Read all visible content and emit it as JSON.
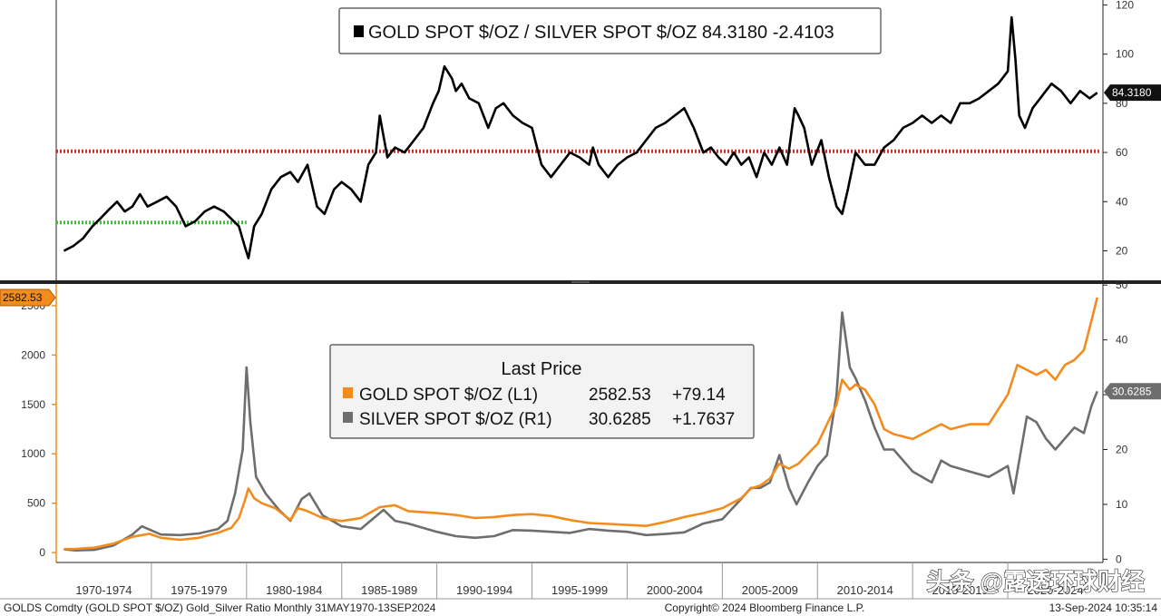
{
  "chart_data": [
    {
      "type": "line",
      "panel": "top",
      "legend": {
        "label": "GOLD SPOT $/OZ / SILVER SPOT $/OZ 84.3180  -2.4103",
        "placement": "top-center"
      },
      "last_value_label": "84.3180",
      "y_axis": {
        "side": "right",
        "ticks": [
          "20",
          "40",
          "60",
          "80",
          "100",
          "120"
        ],
        "range": [
          8,
          122
        ]
      },
      "reference_lines": [
        {
          "value": 60.5,
          "color": "#d42a2a",
          "style": "dotted",
          "from": "1970",
          "to": "2024.8"
        },
        {
          "value": 31.5,
          "color": "#3fbf3f",
          "style": "dotted",
          "from": "1970",
          "to": "1980"
        }
      ],
      "series": [
        {
          "color": "#000000",
          "x": [
            1970.4,
            1970.9,
            1971.4,
            1971.9,
            1972.3,
            1972.8,
            1973.2,
            1973.6,
            1974.0,
            1974.4,
            1974.8,
            1975.3,
            1975.8,
            1976.3,
            1976.8,
            1977.3,
            1977.8,
            1978.3,
            1978.8,
            1979.2,
            1979.6,
            1979.9,
            1980.1,
            1980.4,
            1980.8,
            1981.3,
            1981.8,
            1982.3,
            1982.7,
            1983.2,
            1983.7,
            1984.1,
            1984.6,
            1985.0,
            1985.5,
            1986.0,
            1986.4,
            1986.8,
            1987.0,
            1987.4,
            1987.8,
            1988.3,
            1988.8,
            1989.3,
            1989.8,
            1990.1,
            1990.4,
            1990.8,
            1991.0,
            1991.3,
            1991.7,
            1992.2,
            1992.7,
            1993.1,
            1993.5,
            1994.0,
            1994.5,
            1995.0,
            1995.5,
            1996.0,
            1996.5,
            1997.0,
            1997.5,
            1998.0,
            1998.2,
            1998.5,
            1999.0,
            1999.5,
            2000.0,
            2000.5,
            2001.0,
            2001.5,
            2002.0,
            2002.5,
            2003.0,
            2003.5,
            2004.0,
            2004.4,
            2004.8,
            2005.2,
            2005.6,
            2006.0,
            2006.4,
            2006.8,
            2007.2,
            2007.6,
            2008.0,
            2008.4,
            2008.8,
            2009.0,
            2009.3,
            2009.7,
            2010.2,
            2010.6,
            2011.0,
            2011.3,
            2011.6,
            2012.0,
            2012.5,
            2013.0,
            2013.5,
            2014.0,
            2014.5,
            2015.0,
            2015.5,
            2016.0,
            2016.5,
            2017.0,
            2017.5,
            2018.0,
            2018.5,
            2019.0,
            2019.5,
            2020.0,
            2020.2,
            2020.4,
            2020.6,
            2020.9,
            2021.3,
            2021.8,
            2022.3,
            2022.8,
            2023.3,
            2023.8,
            2024.3,
            2024.7
          ],
          "y": [
            20,
            22,
            25,
            30,
            33,
            37,
            40,
            36,
            38,
            43,
            38,
            40,
            42,
            38,
            30,
            32,
            36,
            38,
            36,
            33,
            30,
            22,
            17,
            30,
            35,
            45,
            50,
            52,
            48,
            55,
            38,
            35,
            45,
            48,
            45,
            40,
            55,
            60,
            75,
            58,
            62,
            60,
            65,
            70,
            80,
            85,
            95,
            90,
            85,
            88,
            82,
            80,
            70,
            78,
            80,
            75,
            72,
            70,
            55,
            50,
            55,
            60,
            58,
            55,
            62,
            55,
            50,
            55,
            58,
            60,
            65,
            70,
            72,
            75,
            78,
            70,
            60,
            62,
            58,
            55,
            60,
            55,
            58,
            50,
            60,
            55,
            62,
            55,
            78,
            75,
            70,
            55,
            65,
            50,
            38,
            35,
            45,
            60,
            55,
            55,
            62,
            65,
            70,
            72,
            75,
            72,
            75,
            72,
            80,
            80,
            82,
            85,
            88,
            93,
            115,
            98,
            75,
            70,
            78,
            83,
            88,
            85,
            80,
            85,
            82,
            84.3
          ]
        }
      ]
    },
    {
      "type": "line",
      "panel": "bottom",
      "legend": {
        "title": "Last Price",
        "placement": "center",
        "entries": [
          {
            "label": "GOLD SPOT $/OZ  (L1)",
            "value": "2582.53",
            "change": "+79.14",
            "color": "#f28c1e"
          },
          {
            "label": "SILVER SPOT $/OZ  (R1)",
            "value": "30.6285",
            "change": "+1.7637",
            "color": "#6e6e6e"
          }
        ]
      },
      "left_axis": {
        "ticks": [
          "0",
          "500",
          "1000",
          "1500",
          "2000",
          "2500"
        ],
        "range": [
          -100,
          2720
        ],
        "last_value_label": "2582.53"
      },
      "right_axis": {
        "ticks": [
          "0",
          "10",
          "20",
          "30",
          "40",
          "50"
        ],
        "range": [
          -0.6,
          50.2
        ],
        "last_value_label": "30.6285"
      },
      "series": [
        {
          "color": "#f28c1e",
          "axis": "left",
          "x": [
            1970.4,
            1971.0,
            1972.0,
            1973.0,
            1974.0,
            1974.9,
            1975.5,
            1976.5,
            1977.5,
            1978.5,
            1979.2,
            1979.6,
            1979.9,
            1980.1,
            1980.4,
            1980.8,
            1981.5,
            1982.3,
            1982.7,
            1983.2,
            1984.0,
            1985.0,
            1986.0,
            1987.0,
            1987.8,
            1988.5,
            1990.0,
            1991.0,
            1992.0,
            1993.0,
            1994.0,
            1995.0,
            1996.0,
            1997.0,
            1998.0,
            1999.0,
            2000.0,
            2001.0,
            2002.0,
            2003.0,
            2004.0,
            2005.0,
            2006.0,
            2006.5,
            2007.0,
            2007.5,
            2008.0,
            2008.5,
            2009.0,
            2009.5,
            2010.0,
            2010.5,
            2011.0,
            2011.3,
            2011.7,
            2012.0,
            2012.5,
            2013.0,
            2013.5,
            2014.0,
            2015.0,
            2016.0,
            2016.5,
            2017.0,
            2018.0,
            2019.0,
            2019.5,
            2020.0,
            2020.5,
            2021.0,
            2021.5,
            2022.0,
            2022.5,
            2023.0,
            2023.5,
            2024.0,
            2024.4,
            2024.7
          ],
          "y": [
            36,
            38,
            50,
            90,
            160,
            190,
            150,
            130,
            150,
            200,
            250,
            350,
            520,
            650,
            550,
            500,
            450,
            330,
            450,
            420,
            350,
            320,
            350,
            460,
            480,
            420,
            400,
            380,
            350,
            360,
            380,
            390,
            370,
            330,
            300,
            290,
            280,
            270,
            310,
            360,
            400,
            450,
            550,
            650,
            680,
            750,
            900,
            850,
            900,
            1000,
            1100,
            1300,
            1500,
            1750,
            1650,
            1700,
            1650,
            1500,
            1250,
            1200,
            1150,
            1250,
            1300,
            1250,
            1300,
            1300,
            1450,
            1600,
            1900,
            1850,
            1800,
            1850,
            1750,
            1900,
            1950,
            2050,
            2350,
            2582.53
          ]
        },
        {
          "color": "#6e6e6e",
          "axis": "right",
          "x": [
            1970.4,
            1971.0,
            1972.0,
            1973.0,
            1974.0,
            1974.5,
            1975.5,
            1976.5,
            1977.5,
            1978.5,
            1979.0,
            1979.4,
            1979.8,
            1980.0,
            1980.2,
            1980.5,
            1981.0,
            1981.7,
            1982.3,
            1982.9,
            1983.3,
            1984.0,
            1985.0,
            1986.0,
            1987.2,
            1987.8,
            1988.5,
            1990.0,
            1991.0,
            1992.0,
            1993.0,
            1994.0,
            1995.0,
            1996.0,
            1997.0,
            1998.0,
            1999.0,
            2000.0,
            2001.0,
            2002.0,
            2003.0,
            2004.0,
            2005.0,
            2006.0,
            2006.5,
            2007.0,
            2007.5,
            2008.0,
            2008.5,
            2008.9,
            2009.5,
            2010.0,
            2010.5,
            2011.0,
            2011.3,
            2011.7,
            2012.0,
            2012.5,
            2013.0,
            2013.5,
            2014.0,
            2015.0,
            2016.0,
            2016.5,
            2017.0,
            2018.0,
            2019.0,
            2019.5,
            2020.0,
            2020.3,
            2020.6,
            2021.0,
            2021.5,
            2022.0,
            2022.5,
            2023.0,
            2023.5,
            2024.0,
            2024.4,
            2024.7
          ],
          "y": [
            1.8,
            1.6,
            1.7,
            2.5,
            4.5,
            6,
            4.5,
            4.4,
            4.7,
            5.5,
            7,
            12,
            20,
            35,
            25,
            15,
            12,
            9,
            7,
            11,
            12,
            8,
            6,
            5.5,
            9,
            7,
            6.5,
            5,
            4.2,
            3.9,
            4.2,
            5.3,
            5.2,
            5,
            4.8,
            5.5,
            5.2,
            5,
            4.4,
            4.6,
            4.9,
            6.5,
            7.3,
            11,
            13,
            13,
            14,
            19,
            13,
            10,
            14,
            17,
            19,
            30,
            45,
            35,
            33,
            29,
            24,
            20,
            20,
            16,
            14,
            18,
            17,
            16,
            15,
            16,
            17,
            12,
            18,
            26,
            25,
            22,
            20,
            22,
            24,
            23,
            28,
            30.6285
          ]
        }
      ]
    },
    {
      "type": "line",
      "panel": "shared-x-axis",
      "x_axis": {
        "labels": [
          "1970-1974",
          "1975-1979",
          "1980-1984",
          "1985-1989",
          "1990-1994",
          "1995-1999",
          "2000-2004",
          "2005-2009",
          "2010-2014",
          "2015-2019",
          "2020-2024"
        ]
      }
    }
  ],
  "footer": {
    "left": "GOLDS Comdty (GOLD SPOT $/OZ) Gold_Silver Ratio  Monthly 31MAY1970-13SEP2024",
    "center": "Copyright© 2024 Bloomberg Finance L.P.",
    "right": "13-Sep-2024  10:35:14"
  },
  "watermark": "头条 @露透环球财经",
  "colors": {
    "gold": "#f28c1e",
    "silver": "#6e6e6e",
    "ratio": "#000000",
    "red_line": "#d42a2a",
    "green_line": "#3fbf3f"
  }
}
